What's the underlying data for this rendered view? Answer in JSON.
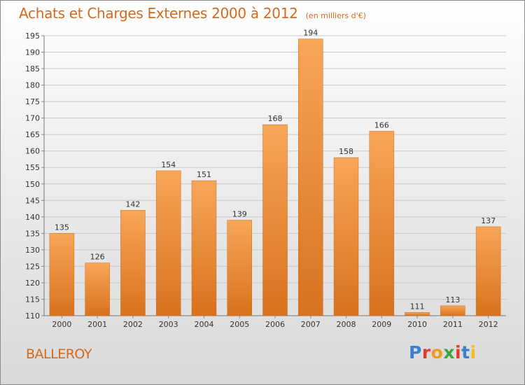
{
  "chart_title": "Achats et Charges Externes 2000 à 2012",
  "unit_label": "(en milliers d'€)",
  "commune": "BALLEROY",
  "logo": {
    "letters": [
      "P",
      "r",
      "o",
      "x",
      "i",
      "t",
      "i"
    ],
    "colors": [
      "#3a7fd0",
      "#e23b2e",
      "#f09a1a",
      "#3aa83a",
      "#e23b2e",
      "#3a7fd0",
      "#f0c01a"
    ]
  },
  "colors": {
    "bar_light": "#f8a658",
    "bar_dark": "#d8721e",
    "grid": "#c8c8c8",
    "text": "#333333",
    "accent": "#d26a1f"
  },
  "chart_data": {
    "type": "bar",
    "categories": [
      "2000",
      "2001",
      "2002",
      "2003",
      "2004",
      "2005",
      "2006",
      "2007",
      "2008",
      "2009",
      "2010",
      "2011",
      "2012"
    ],
    "values": [
      135,
      126,
      142,
      154,
      151,
      139,
      168,
      194,
      158,
      166,
      111,
      113,
      137
    ],
    "ylim": [
      110,
      195
    ],
    "yticks": [
      110,
      115,
      120,
      125,
      130,
      135,
      140,
      145,
      150,
      155,
      160,
      165,
      170,
      175,
      180,
      185,
      190,
      195
    ],
    "grid": true,
    "legend": "none"
  }
}
